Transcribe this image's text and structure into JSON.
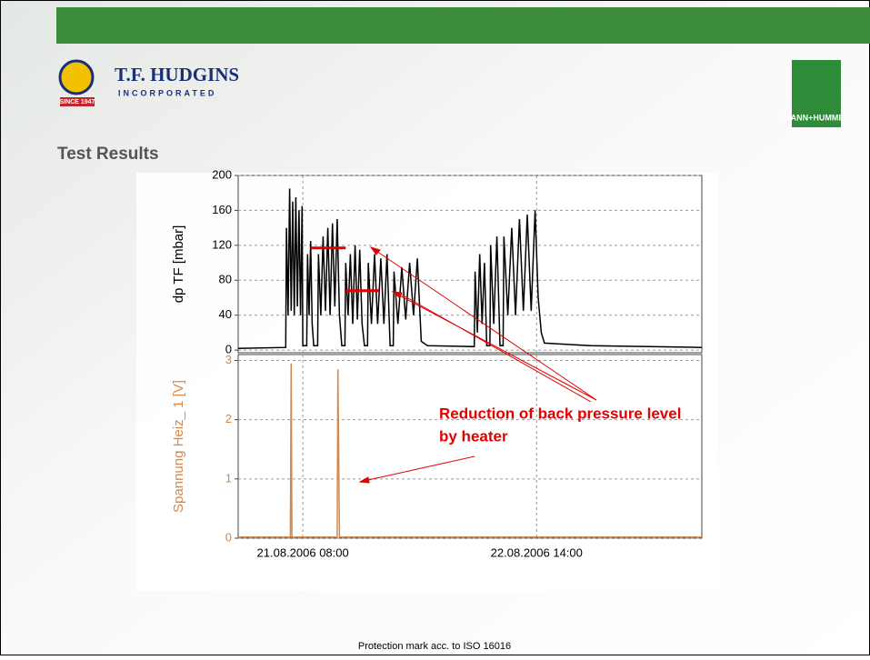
{
  "slide": {
    "logo_name": "T.F. HUDGINS",
    "logo_sub": "INCORPORATED",
    "logo_since": "SINCE 1947",
    "brand": "MANN+HUMMEL",
    "heading": "Test Results",
    "footer": "Protection mark acc. to ISO 16016",
    "annotation": [
      "Reduction of back pressure level",
      "by heater"
    ]
  },
  "chart_data": [
    {
      "type": "line",
      "ylabel": "dp TF [mbar]",
      "color": "#000000",
      "grid": true,
      "ylim": [
        -3,
        200
      ],
      "yticks": [
        0,
        40,
        80,
        120,
        160,
        200
      ],
      "xlim": [
        -0.3,
        59.2
      ],
      "xticks": [
        8,
        38
      ],
      "x": [
        -0.3,
        5.8,
        5.9,
        6.1,
        6.3,
        6.5,
        6.7,
        6.9,
        7.1,
        7.3,
        7.5,
        7.7,
        7.9,
        8.0,
        8.5,
        8.6,
        8.8,
        9.0,
        9.2,
        9.4,
        9.9,
        10.0,
        10.3,
        10.6,
        10.9,
        11.2,
        11.5,
        11.8,
        12.1,
        12.4,
        12.7,
        13.0,
        13.4,
        13.5,
        13.8,
        14.1,
        14.4,
        14.7,
        15.0,
        15.3,
        15.6,
        15.9,
        16.3,
        16.4,
        16.8,
        17.2,
        17.6,
        18.0,
        18.4,
        18.8,
        19.2,
        19.6,
        19.7,
        20.2,
        20.7,
        21.2,
        21.7,
        22.2,
        22.7,
        23.2,
        24,
        30,
        30.1,
        30.4,
        30.7,
        31.0,
        31.3,
        31.6,
        32.0,
        32.1,
        32.5,
        32.9,
        33.3,
        33.7,
        33.8,
        34.3,
        34.8,
        35.3,
        35.8,
        36.3,
        36.8,
        37.3,
        37.8,
        38.2,
        38.6,
        39,
        45,
        59.2
      ],
      "values": [
        2,
        3,
        140,
        40,
        185,
        45,
        170,
        40,
        175,
        50,
        160,
        40,
        165,
        5,
        5,
        110,
        40,
        125,
        30,
        5,
        5,
        110,
        40,
        130,
        45,
        140,
        40,
        145,
        50,
        150,
        40,
        5,
        5,
        100,
        40,
        110,
        30,
        120,
        35,
        115,
        30,
        5,
        5,
        100,
        30,
        110,
        30,
        105,
        30,
        110,
        5,
        5,
        90,
        30,
        95,
        35,
        100,
        40,
        105,
        10,
        5,
        4,
        90,
        20,
        110,
        30,
        100,
        5,
        5,
        120,
        30,
        130,
        5,
        5,
        130,
        40,
        140,
        40,
        150,
        45,
        155,
        45,
        160,
        60,
        20,
        8,
        5,
        3
      ],
      "reference_lines": [
        {
          "x": [
            9,
            13.5
          ],
          "y": 117,
          "color": "#e00000"
        },
        {
          "x": [
            13.5,
            17.8
          ],
          "y": 68,
          "color": "#e00000"
        }
      ]
    },
    {
      "type": "line",
      "ylabel": "Spannung Heiz_ 1 [V]",
      "color": "#d2884e",
      "grid": true,
      "ylim": [
        0,
        3.1
      ],
      "yticks": [
        0,
        1,
        2,
        3
      ],
      "xlim": [
        -0.3,
        59.2
      ],
      "xticks": [
        {
          "value": 8,
          "label": "21.08.2006 08:00"
        },
        {
          "value": 38,
          "label": "22.08.2006 14:00"
        }
      ],
      "x": [
        -0.3,
        6.4,
        6.5,
        6.6,
        12.4,
        12.5,
        12.7,
        59.2
      ],
      "values": [
        0.02,
        0.02,
        2.95,
        0.02,
        0.02,
        2.85,
        0.02,
        0.02
      ]
    }
  ]
}
